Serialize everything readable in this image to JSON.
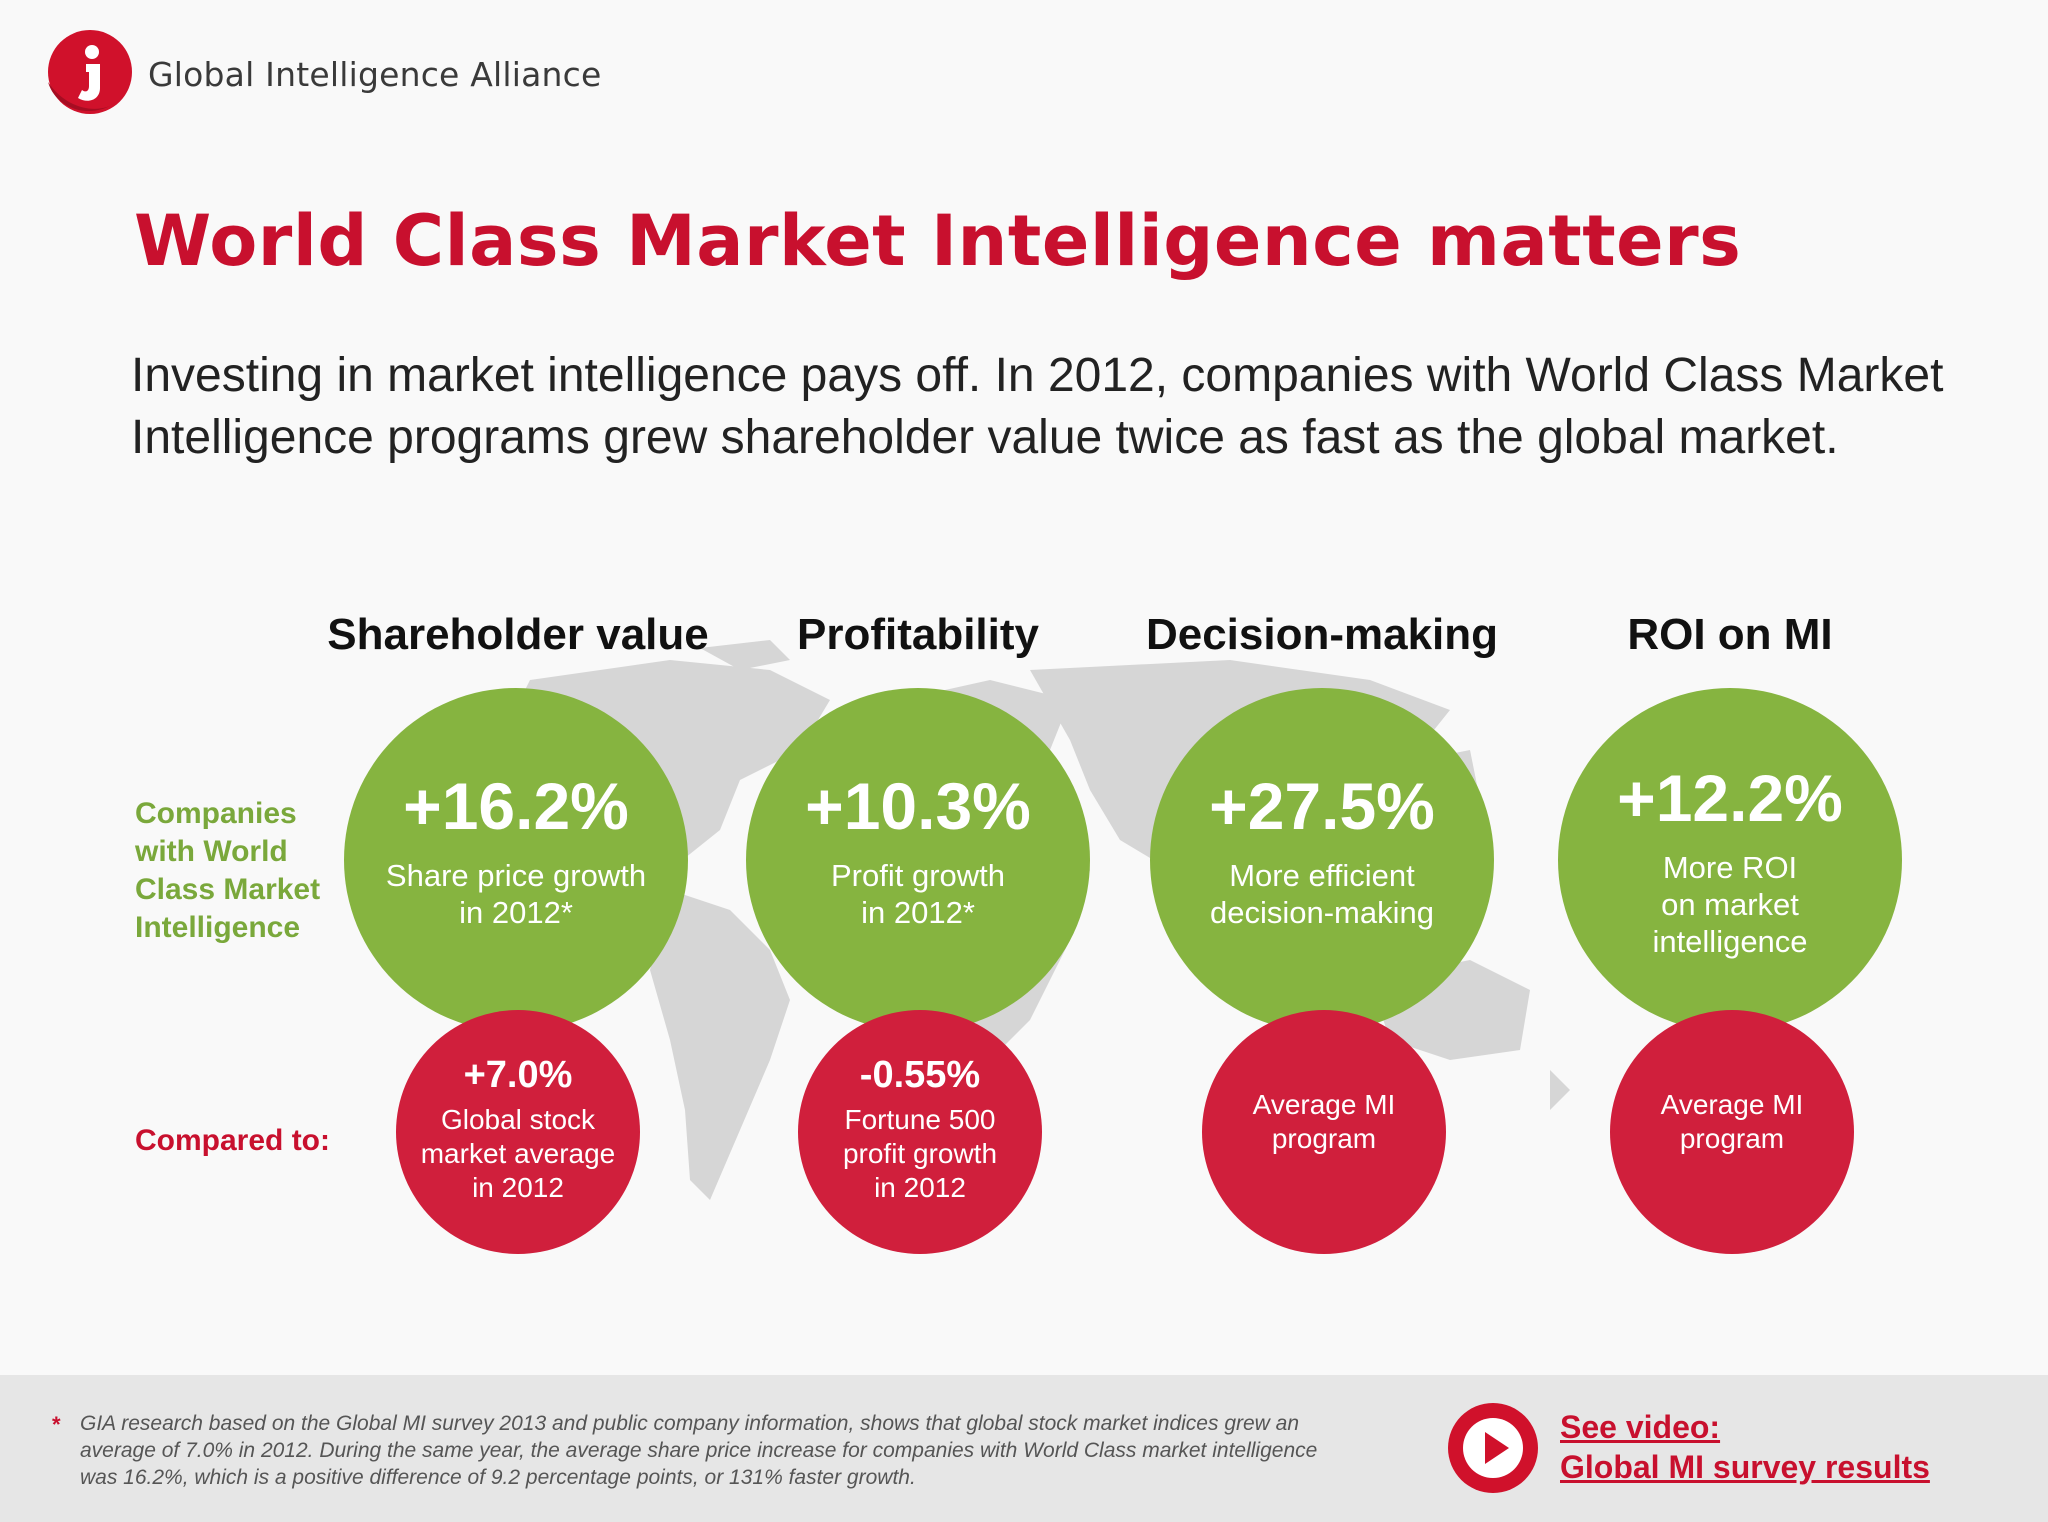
{
  "brand": {
    "name": "Global Intelligence Alliance"
  },
  "title": "World Class Market Intelligence matters",
  "intro": "Investing in market intelligence pays off. In 2012, companies with World Class Market Intelligence programs grew shareholder value twice as fast as the global market.",
  "columns": [
    {
      "heading": "Shareholder value"
    },
    {
      "heading": "Profitability"
    },
    {
      "heading": "Decision-making"
    },
    {
      "heading": "ROI on MI"
    }
  ],
  "row_labels": {
    "companies": "Companies with World Class Market Intelligence",
    "compared": "Compared to:"
  },
  "world_class": [
    {
      "value": "+16.2%",
      "label": "Share price growth in 2012*"
    },
    {
      "value": "+10.3%",
      "label": "Profit growth in 2012*"
    },
    {
      "value": "+27.5%",
      "label": "More efficient decision-making"
    },
    {
      "value": "+12.2%",
      "label": "More ROI on market intelligence"
    }
  ],
  "comparison": [
    {
      "value": "+7.0%",
      "label": "Global stock market average in 2012"
    },
    {
      "value": "-0.55%",
      "label": "Fortune 500 profit growth in 2012"
    },
    {
      "value": "",
      "label": "Average MI program"
    },
    {
      "value": "",
      "label": "Average MI program"
    }
  ],
  "footnote": {
    "marker": "*",
    "text": "GIA research based on the Global MI survey 2013 and public company information, shows that global stock market indices grew an average of 7.0% in 2012. During the same year, the average share price increase for companies with World Class market intelligence was 16.2%, which is a positive difference of 9.2 percentage points, or 131% faster growth."
  },
  "video": {
    "line1": "See video:",
    "line2": "Global MI survey results",
    "icon": "play-icon"
  },
  "colors": {
    "brand_red": "#c8102e",
    "green": "#86b440",
    "red_circle": "#d01f3c",
    "map_gray": "#d4d4d4"
  }
}
